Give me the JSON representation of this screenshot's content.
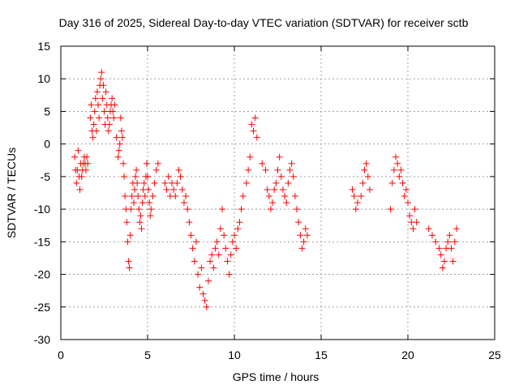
{
  "chart_data": {
    "type": "scatter",
    "title": "Day 316 of 2025, Sidereal Day-to-day VTEC variation (SDTVAR) for receiver sctb",
    "xlabel": "GPS time / hours",
    "ylabel": "SDTVAR / TECUs",
    "xlim": [
      0,
      25
    ],
    "ylim": [
      -30,
      15
    ],
    "xticks": [
      0,
      5,
      10,
      15,
      20,
      25
    ],
    "yticks": [
      15,
      10,
      5,
      0,
      -5,
      -10,
      -15,
      -20,
      -25,
      -30
    ],
    "grid": true,
    "marker": "+",
    "color": "#ff0000",
    "series": [
      {
        "name": "SDTVAR",
        "x": [
          0.8,
          0.85,
          0.9,
          0.95,
          1.0,
          1.05,
          1.1,
          1.15,
          1.2,
          1.25,
          1.3,
          1.35,
          1.4,
          1.45,
          1.5,
          1.55,
          1.7,
          1.75,
          1.8,
          1.85,
          1.9,
          1.95,
          2.0,
          2.05,
          2.1,
          2.15,
          2.2,
          2.25,
          2.3,
          2.35,
          2.4,
          2.45,
          2.5,
          2.55,
          2.6,
          2.65,
          2.7,
          2.75,
          2.8,
          2.85,
          2.9,
          2.95,
          3.0,
          3.05,
          3.1,
          3.2,
          3.3,
          3.35,
          3.4,
          3.45,
          3.5,
          3.55,
          3.6,
          3.65,
          3.7,
          3.75,
          3.8,
          3.85,
          3.9,
          3.95,
          4.0,
          4.05,
          4.1,
          4.15,
          4.2,
          4.25,
          4.3,
          4.35,
          4.4,
          4.45,
          4.5,
          4.55,
          4.6,
          4.65,
          4.7,
          4.75,
          4.8,
          4.85,
          4.9,
          4.95,
          5.0,
          5.05,
          5.1,
          5.15,
          5.2,
          5.3,
          5.4,
          5.5,
          5.6,
          6.0,
          6.1,
          6.2,
          6.3,
          6.4,
          6.5,
          6.6,
          6.7,
          6.8,
          6.9,
          7.0,
          7.1,
          7.2,
          7.3,
          7.4,
          7.5,
          7.6,
          7.7,
          7.8,
          7.9,
          8.0,
          8.1,
          8.2,
          8.3,
          8.4,
          8.5,
          8.6,
          8.7,
          8.8,
          8.9,
          9.0,
          9.1,
          9.2,
          9.3,
          9.4,
          9.5,
          9.6,
          9.7,
          9.8,
          9.9,
          10.0,
          10.1,
          10.2,
          10.3,
          10.4,
          10.5,
          10.7,
          10.8,
          10.9,
          11.0,
          11.1,
          11.2,
          11.3,
          11.6,
          11.8,
          11.9,
          12.0,
          12.1,
          12.2,
          12.3,
          12.4,
          12.5,
          12.6,
          12.7,
          12.8,
          12.9,
          13.0,
          13.1,
          13.2,
          13.3,
          13.4,
          13.5,
          13.6,
          13.7,
          13.8,
          13.9,
          14.0,
          14.1,
          14.2,
          16.8,
          16.9,
          17.0,
          17.1,
          17.3,
          17.4,
          17.5,
          17.6,
          17.7,
          17.8,
          19.0,
          19.1,
          19.2,
          19.3,
          19.4,
          19.5,
          19.6,
          19.7,
          19.8,
          19.9,
          20.0,
          20.1,
          20.2,
          20.3,
          20.4,
          20.5,
          21.2,
          21.4,
          21.6,
          21.8,
          21.9,
          22.0,
          22.1,
          22.2,
          22.3,
          22.4,
          22.5,
          22.6,
          22.7,
          22.8
        ],
        "y": [
          -2,
          -4,
          -6,
          -4,
          -1,
          -5,
          -7,
          -3,
          -5,
          -4,
          -3,
          -2,
          -3,
          -4,
          -2,
          -3,
          4,
          6,
          2,
          1,
          3,
          5,
          7,
          2,
          8,
          6,
          4,
          9,
          10,
          11,
          7,
          9,
          5,
          3,
          8,
          6,
          4,
          2,
          3,
          5,
          6,
          7,
          5,
          4,
          6,
          1,
          -2,
          -1,
          0,
          4,
          2,
          1,
          -3,
          -5,
          -8,
          -10,
          -12,
          -15,
          -18,
          -19,
          -14,
          -10,
          -8,
          -6,
          -9,
          -7,
          -5,
          -4,
          -6,
          -8,
          -10,
          -12,
          -11,
          -13,
          -9,
          -7,
          -6,
          -8,
          -5,
          -3,
          -5,
          -7,
          -9,
          -11,
          -10,
          -8,
          -6,
          -4,
          -3,
          -6,
          -7,
          -5,
          -8,
          -6,
          -7,
          -8,
          -6,
          -4,
          -5,
          -7,
          -9,
          -8,
          -10,
          -12,
          -14,
          -16,
          -18,
          -15,
          -20,
          -22,
          -19,
          -23,
          -24,
          -25,
          -21,
          -18,
          -17,
          -19,
          -16,
          -15,
          -17,
          -13,
          -10,
          -14,
          -16,
          -18,
          -20,
          -17,
          -15,
          -14,
          -16,
          -13,
          -12,
          -10,
          -8,
          -6,
          -4,
          -2,
          3,
          2,
          4,
          1,
          -3,
          -4,
          -7,
          -8,
          -10,
          -9,
          -7,
          -6,
          -4,
          -2,
          -5,
          -7,
          -8,
          -9,
          -6,
          -4,
          -3,
          -5,
          -8,
          -10,
          -12,
          -14,
          -16,
          -15,
          -13,
          -14,
          -7,
          -8,
          -10,
          -9,
          -8,
          -6,
          -4,
          -3,
          -5,
          -7,
          -10,
          -6,
          -4,
          -2,
          -3,
          -5,
          -4,
          -6,
          -8,
          -7,
          -9,
          -11,
          -12,
          -13,
          -10,
          -12,
          -13,
          -14,
          -15,
          -16,
          -17,
          -19,
          -18,
          -16,
          -15,
          -14,
          -16,
          -18,
          -15,
          -13
        ]
      }
    ]
  }
}
